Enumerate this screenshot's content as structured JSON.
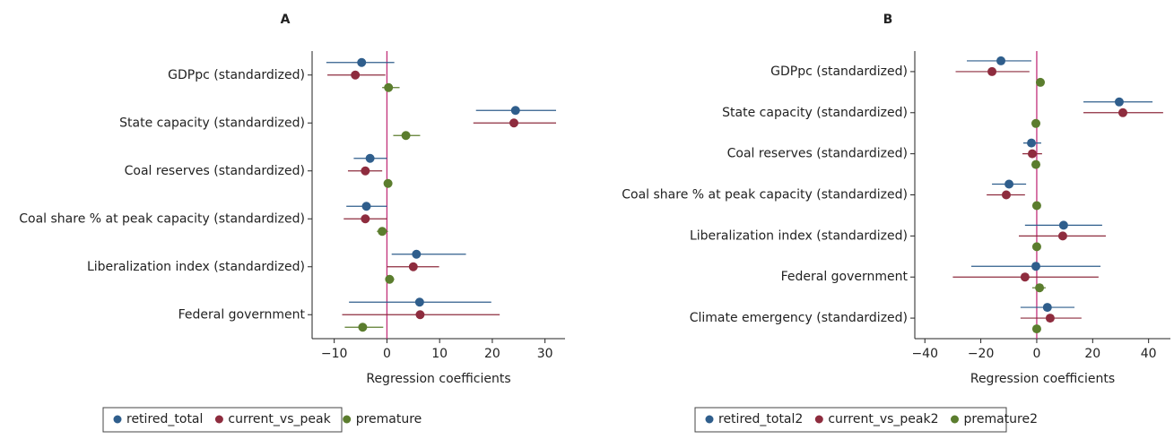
{
  "chart_data": [
    {
      "type": "coefficient",
      "title": "A",
      "xlabel": "Regression coefficients",
      "categories": [
        "GDPpc (standardized)",
        "State capacity (standardized)",
        "Coal reserves (standardized)",
        "Coal share % at peak capacity (standardized)",
        "Liberalization index (standardized)",
        "Federal government"
      ],
      "xlim": [
        -14.2,
        33.8
      ],
      "xticks": [
        {
          "value": -10,
          "label": "−10"
        },
        0,
        10,
        20,
        30
      ],
      "zero_line_color": "#c2307a",
      "legend": "bottom",
      "series": [
        {
          "name": "retired_total",
          "color": "#2f5e8c",
          "values": [
            -4.8,
            24.4,
            -3.2,
            -3.9,
            5.6,
            6.2
          ],
          "low": [
            -11.5,
            16.9,
            -6.3,
            -7.7,
            0.9,
            -7.2
          ],
          "high": [
            1.4,
            32.1,
            0,
            0,
            15,
            19.8
          ]
        },
        {
          "name": "current_vs_peak",
          "color": "#8e2c3e",
          "values": [
            -6.0,
            24.1,
            -4.1,
            -4.1,
            5.0,
            6.3
          ],
          "low": [
            -11.3,
            16.4,
            -7.4,
            -8.2,
            0,
            -8.5
          ],
          "high": [
            -0.3,
            32.1,
            -0.9,
            0,
            9.9,
            21.4
          ]
        },
        {
          "name": "premature",
          "color": "#5b7d2e",
          "values": [
            0.3,
            3.6,
            0.2,
            -0.9,
            0.5,
            -4.6
          ],
          "low": [
            -0.9,
            1.2,
            0,
            -1.9,
            -0.3,
            -8
          ],
          "high": [
            2.4,
            6.3,
            0.3,
            0.2,
            1.4,
            -0.7
          ]
        }
      ]
    },
    {
      "type": "coefficient",
      "title": "B",
      "xlabel": "Regression coefficients",
      "categories": [
        "GDPpc (standardized)",
        "State capacity (standardized)",
        "Coal reserves (standardized)",
        "Coal share % at peak capacity (standardized)",
        "Liberalization index (standardized)",
        "Federal government",
        "Climate emergency (standardized)"
      ],
      "xlim": [
        -43.6,
        47.8
      ],
      "xticks": [
        {
          "value": -40,
          "label": "−40"
        },
        {
          "value": -20,
          "label": "−20"
        },
        0,
        20,
        40
      ],
      "zero_line_color": "#c2307a",
      "legend": "bottom",
      "series": [
        {
          "name": "retired_total2",
          "color": "#2f5e8c",
          "values": [
            -12.8,
            29.5,
            -1.9,
            -9.9,
            9.6,
            -0.3,
            3.8
          ],
          "low": [
            -25,
            16.7,
            -4.8,
            -16,
            -4.2,
            -23.4,
            -5.8
          ],
          "high": [
            -1.9,
            41.4,
            1.6,
            -3.8,
            23.4,
            22.8,
            13.5
          ]
        },
        {
          "name": "current_vs_peak2",
          "color": "#8e2c3e",
          "values": [
            -16,
            30.8,
            -1.6,
            -10.9,
            9.3,
            -4.2,
            4.8
          ],
          "low": [
            -29,
            16.7,
            -5.1,
            -17.9,
            -6.4,
            -30,
            -5.8
          ],
          "high": [
            -2.6,
            45.2,
            1.9,
            -4.2,
            24.7,
            22.1,
            16
          ]
        },
        {
          "name": "premature2",
          "color": "#5b7d2e",
          "values": [
            1.3,
            -0.3,
            -0.3,
            0,
            0,
            1,
            0
          ],
          "low": [
            -0.3,
            -1,
            -1,
            -0.6,
            -0.6,
            -1.6,
            -1
          ],
          "high": [
            2.9,
            0.3,
            0.3,
            0.6,
            0.6,
            3.2,
            1
          ]
        }
      ]
    }
  ]
}
